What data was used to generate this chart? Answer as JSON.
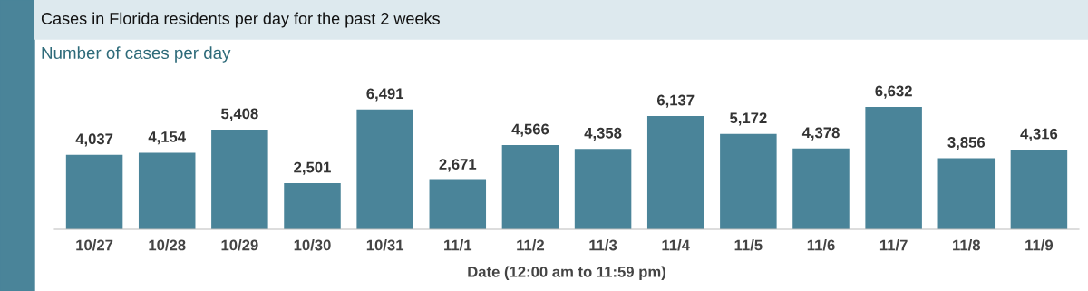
{
  "chart_data": {
    "type": "bar",
    "title": "Cases in Florida residents per day for the past 2 weeks",
    "subtitle": "Number of cases per day",
    "xlabel": "Date (12:00 am to 11:59 pm)",
    "categories": [
      "10/27",
      "10/28",
      "10/29",
      "10/30",
      "10/31",
      "11/1",
      "11/2",
      "11/3",
      "11/4",
      "11/5",
      "11/6",
      "11/7",
      "11/8",
      "11/9"
    ],
    "values": [
      4037,
      4154,
      5408,
      2501,
      6491,
      2671,
      4566,
      4358,
      6137,
      5172,
      4378,
      6632,
      3856,
      4316
    ],
    "value_labels": [
      "4,037",
      "4,154",
      "5,408",
      "2,501",
      "6,491",
      "2,671",
      "4,566",
      "4,358",
      "6,137",
      "5,172",
      "4,378",
      "6,632",
      "3,856",
      "4,316"
    ],
    "color": "#4a8499",
    "grid": false,
    "legend": false
  }
}
